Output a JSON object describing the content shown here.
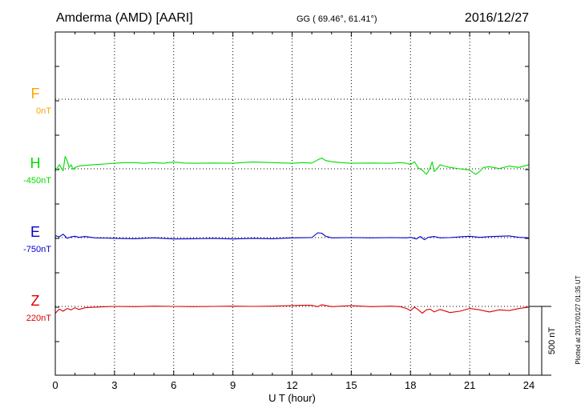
{
  "header": {
    "station": "Amderma (AMD)  [AARI]",
    "coords": "GG ( 69.46°,  61.41°)",
    "date": "2016/12/27"
  },
  "footer": {
    "plotted": "Plotted at 2017/01/27 01:35 UT"
  },
  "colors": {
    "F": "#ffa500",
    "H": "#00dd00",
    "E": "#0000cc",
    "Z": "#dd0000",
    "grid": "#000000"
  },
  "chart_data": {
    "type": "line",
    "title": "Amderma (AMD)  [AARI]",
    "xlabel": "U T (hour)",
    "ylabel": "",
    "xlim": [
      0,
      24
    ],
    "x_ticks": [
      "0",
      "3",
      "6",
      "9",
      "12",
      "15",
      "18",
      "21",
      "24"
    ],
    "grid": true,
    "y_units": "nT",
    "scale_bar": {
      "label": "500 nT",
      "value_nT": 500
    },
    "panel_range_nT": 500,
    "series": [
      {
        "name": "F",
        "baseline_label": "0nT",
        "baseline_nT": 0,
        "x": [],
        "y": []
      },
      {
        "name": "H",
        "baseline_label": "-450nT",
        "baseline_nT": -450,
        "x": [
          0,
          0.2,
          0.4,
          0.5,
          0.6,
          0.7,
          0.8,
          0.9,
          1.0,
          1.2,
          1.5,
          2.0,
          2.5,
          3.0,
          3.5,
          4.0,
          4.5,
          5.0,
          5.5,
          6.0,
          6.5,
          7.0,
          8.0,
          9.0,
          10.0,
          11.0,
          12.0,
          12.5,
          13.0,
          13.3,
          13.5,
          13.7,
          14.0,
          14.5,
          15.0,
          16.0,
          17.0,
          17.5,
          17.8,
          18.0,
          18.2,
          18.4,
          18.6,
          18.8,
          18.9,
          19.0,
          19.1,
          19.2,
          19.3,
          19.5,
          19.7,
          20.0,
          20.5,
          21.0,
          21.3,
          21.5,
          21.7,
          22.0,
          22.5,
          23.0,
          23.5,
          24.0
        ],
        "y": [
          -470,
          -420,
          -465,
          -360,
          -390,
          -440,
          -420,
          -455,
          -440,
          -430,
          -425,
          -420,
          -415,
          -410,
          -405,
          -405,
          -410,
          -405,
          -410,
          -400,
          -408,
          -410,
          -408,
          -410,
          -400,
          -405,
          -410,
          -405,
          -408,
          -385,
          -372,
          -390,
          -398,
          -405,
          -410,
          -408,
          -410,
          -405,
          -410,
          -420,
          -398,
          -445,
          -460,
          -490,
          -470,
          -440,
          -400,
          -470,
          -455,
          -420,
          -430,
          -440,
          -450,
          -460,
          -490,
          -470,
          -440,
          -435,
          -448,
          -430,
          -440,
          -420
        ]
      },
      {
        "name": "E",
        "baseline_label": "-750nT",
        "baseline_nT": -750,
        "x": [
          0,
          0.2,
          0.4,
          0.6,
          0.8,
          1.0,
          1.2,
          1.5,
          2.0,
          3.0,
          4.0,
          5.0,
          6.0,
          7.0,
          8.0,
          9.0,
          10.0,
          11.0,
          12.0,
          13.0,
          13.3,
          13.5,
          13.7,
          14.0,
          15.0,
          16.0,
          17.0,
          17.8,
          18.0,
          18.3,
          18.5,
          18.7,
          18.9,
          19.2,
          19.5,
          20.0,
          20.5,
          21.0,
          21.5,
          22.0,
          22.5,
          23.0,
          23.5,
          24.0
        ],
        "y": [
          -735,
          -745,
          -725,
          -755,
          -745,
          -740,
          -748,
          -742,
          -752,
          -755,
          -758,
          -752,
          -760,
          -758,
          -755,
          -760,
          -755,
          -758,
          -752,
          -750,
          -715,
          -718,
          -740,
          -752,
          -750,
          -752,
          -750,
          -752,
          -748,
          -760,
          -742,
          -765,
          -748,
          -742,
          -752,
          -750,
          -745,
          -740,
          -748,
          -743,
          -740,
          -738,
          -748,
          -752
        ]
      },
      {
        "name": "Z",
        "baseline_label": "220nT",
        "baseline_nT": 220,
        "x": [
          0,
          0.2,
          0.4,
          0.6,
          0.8,
          1.0,
          1.2,
          1.5,
          2.0,
          3.0,
          4.0,
          5.0,
          6.0,
          7.0,
          8.0,
          9.0,
          10.0,
          11.0,
          12.0,
          12.5,
          13.0,
          13.3,
          13.5,
          14.0,
          14.5,
          15.0,
          16.0,
          17.0,
          17.5,
          17.8,
          18.0,
          18.2,
          18.4,
          18.6,
          18.8,
          19.0,
          19.2,
          19.5,
          20.0,
          20.5,
          21.0,
          21.5,
          22.0,
          22.5,
          23.0,
          23.5,
          24.0
        ],
        "y": [
          170,
          200,
          185,
          205,
          195,
          210,
          198,
          210,
          215,
          220,
          218,
          222,
          220,
          218,
          220,
          222,
          220,
          222,
          225,
          228,
          228,
          218,
          232,
          218,
          222,
          225,
          218,
          222,
          218,
          205,
          190,
          215,
          195,
          170,
          195,
          200,
          180,
          198,
          175,
          185,
          205,
          195,
          180,
          195,
          190,
          205,
          215
        ]
      }
    ]
  }
}
